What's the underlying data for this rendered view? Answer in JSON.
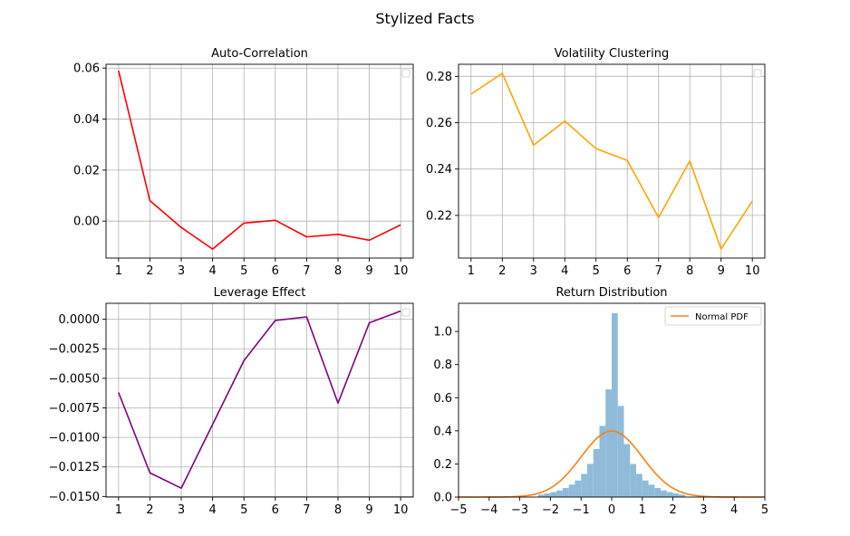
{
  "figure": {
    "title": "Stylized Facts"
  },
  "chart_data": [
    {
      "id": "autocorr",
      "type": "line",
      "title": "Auto-Correlation",
      "x": [
        1,
        2,
        3,
        4,
        5,
        6,
        7,
        8,
        9,
        10
      ],
      "series": [
        {
          "values": [
            0.059,
            0.008,
            -0.0025,
            -0.011,
            -0.0008,
            0.0003,
            -0.0062,
            -0.0052,
            -0.0075,
            -0.0015
          ],
          "color": "#ff0000"
        }
      ],
      "xlim": [
        0.6,
        10.4
      ],
      "ylim": [
        -0.0145,
        0.0615
      ],
      "xticks": [
        1,
        2,
        3,
        4,
        5,
        6,
        7,
        8,
        9,
        10
      ],
      "xticklabels": [
        "1",
        "2",
        "3",
        "4",
        "5",
        "6",
        "7",
        "8",
        "9",
        "10"
      ],
      "yticks": [
        0.0,
        0.02,
        0.04,
        0.06
      ],
      "yticklabels": [
        "0.00",
        "0.02",
        "0.04",
        "0.06"
      ],
      "grid": true,
      "legend": "top-right (empty)"
    },
    {
      "id": "volclust",
      "type": "line",
      "title": "Volatility Clustering",
      "x": [
        1,
        2,
        3,
        4,
        5,
        6,
        7,
        8,
        9,
        10
      ],
      "series": [
        {
          "values": [
            0.2723,
            0.2813,
            0.2503,
            0.2607,
            0.2488,
            0.2437,
            0.2191,
            0.2435,
            0.2055,
            0.2262
          ],
          "color": "#ffa500"
        }
      ],
      "xlim": [
        0.6,
        10.4
      ],
      "ylim": [
        0.2016,
        0.2852
      ],
      "xticks": [
        1,
        2,
        3,
        4,
        5,
        6,
        7,
        8,
        9,
        10
      ],
      "xticklabels": [
        "1",
        "2",
        "3",
        "4",
        "5",
        "6",
        "7",
        "8",
        "9",
        "10"
      ],
      "yticks": [
        0.22,
        0.24,
        0.26,
        0.28
      ],
      "yticklabels": [
        "0.22",
        "0.24",
        "0.26",
        "0.28"
      ],
      "grid": true,
      "legend": "top-right (empty)"
    },
    {
      "id": "leverage",
      "type": "line",
      "title": "Leverage Effect",
      "x": [
        1,
        2,
        3,
        4,
        5,
        6,
        7,
        8,
        9,
        10
      ],
      "series": [
        {
          "values": [
            -0.0062,
            -0.013,
            -0.0143,
            -0.0089,
            -0.0035,
            -0.0001,
            0.0002,
            -0.0071,
            -0.0003,
            0.0007
          ],
          "color": "#800080"
        }
      ],
      "xlim": [
        0.6,
        10.4
      ],
      "ylim": [
        -0.01505,
        0.00135
      ],
      "xticks": [
        1,
        2,
        3,
        4,
        5,
        6,
        7,
        8,
        9,
        10
      ],
      "xticklabels": [
        "1",
        "2",
        "3",
        "4",
        "5",
        "6",
        "7",
        "8",
        "9",
        "10"
      ],
      "yticks": [
        -0.015,
        -0.0125,
        -0.01,
        -0.0075,
        -0.005,
        -0.0025,
        0.0
      ],
      "yticklabels": [
        "−0.0150",
        "−0.0125",
        "−0.0100",
        "−0.0075",
        "−0.0050",
        "−0.0025",
        "0.0000"
      ],
      "grid": true,
      "legend": "top-right (empty)"
    },
    {
      "id": "retdist",
      "type": "histogram",
      "title": "Return Distribution",
      "bin_width": 0.2,
      "bins": [
        {
          "x0": -2.4,
          "density": 0.015
        },
        {
          "x0": -2.2,
          "density": 0.022
        },
        {
          "x0": -2.0,
          "density": 0.03
        },
        {
          "x0": -1.8,
          "density": 0.04
        },
        {
          "x0": -1.6,
          "density": 0.055
        },
        {
          "x0": -1.4,
          "density": 0.075
        },
        {
          "x0": -1.2,
          "density": 0.1
        },
        {
          "x0": -1.0,
          "density": 0.14
        },
        {
          "x0": -0.8,
          "density": 0.2
        },
        {
          "x0": -0.6,
          "density": 0.29
        },
        {
          "x0": -0.4,
          "density": 0.43
        },
        {
          "x0": -0.2,
          "density": 0.65
        },
        {
          "x0": 0.0,
          "density": 1.11
        },
        {
          "x0": 0.2,
          "density": 0.55
        },
        {
          "x0": 0.4,
          "density": 0.32
        },
        {
          "x0": 0.6,
          "density": 0.2
        },
        {
          "x0": 0.8,
          "density": 0.14
        },
        {
          "x0": 1.0,
          "density": 0.1
        },
        {
          "x0": 1.2,
          "density": 0.075
        },
        {
          "x0": 1.4,
          "density": 0.055
        },
        {
          "x0": 1.6,
          "density": 0.04
        },
        {
          "x0": 1.8,
          "density": 0.03
        },
        {
          "x0": 2.0,
          "density": 0.022
        },
        {
          "x0": 2.2,
          "density": 0.015
        }
      ],
      "hist_color": "#8fbbd9",
      "series": [
        {
          "name": "Normal PDF",
          "type": "line",
          "function": "standard normal pdf",
          "mean": 0,
          "std": 1,
          "color": "#ff7f0e"
        }
      ],
      "xlim": [
        -5,
        5
      ],
      "ylim": [
        0,
        1.17
      ],
      "xticks": [
        -5,
        -4,
        -3,
        -2,
        -1,
        0,
        1,
        2,
        3,
        4,
        5
      ],
      "xticklabels": [
        "−5",
        "−4",
        "−3",
        "−2",
        "−1",
        "0",
        "1",
        "2",
        "3",
        "4",
        "5"
      ],
      "yticks": [
        0.0,
        0.2,
        0.4,
        0.6,
        0.8,
        1.0
      ],
      "yticklabels": [
        "0.0",
        "0.2",
        "0.4",
        "0.6",
        "0.8",
        "1.0"
      ],
      "grid": false,
      "legend": "top-right"
    }
  ]
}
